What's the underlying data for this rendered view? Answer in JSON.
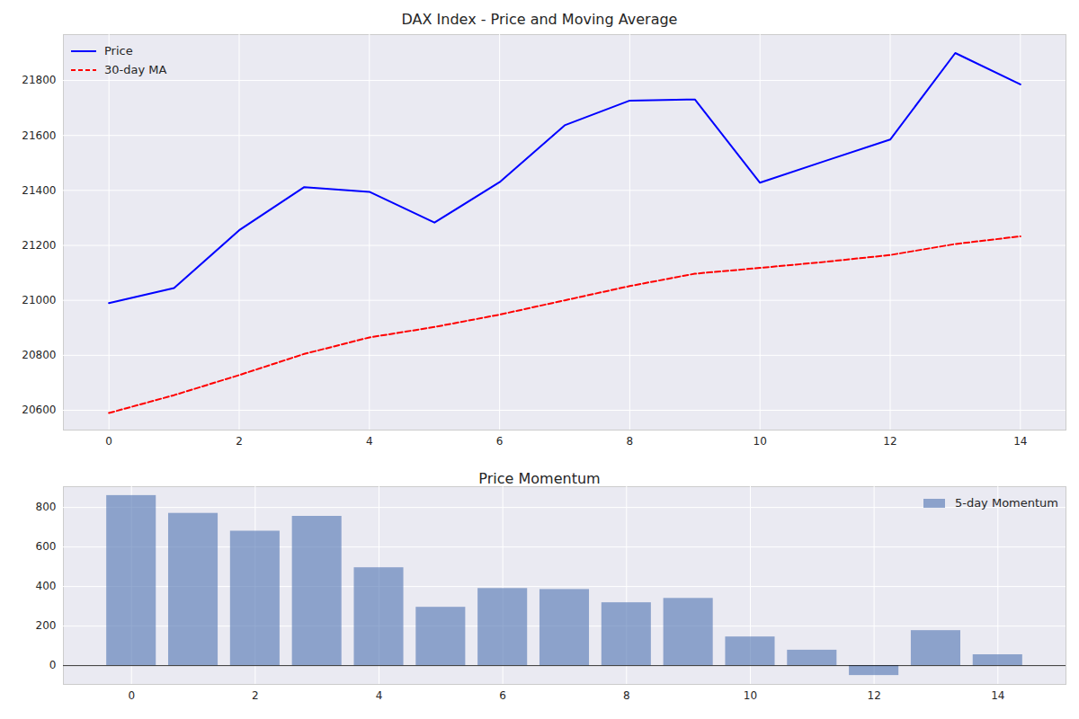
{
  "chart_data": [
    {
      "type": "line",
      "title": "DAX Index - Price and Moving Average",
      "x": [
        0,
        1,
        2,
        3,
        4,
        5,
        6,
        7,
        8,
        9,
        10,
        11,
        12,
        13,
        14
      ],
      "xlim": [
        -0.7,
        14.7
      ],
      "xticks": [
        0,
        2,
        4,
        6,
        8,
        10,
        12,
        14
      ],
      "ylim": [
        20528,
        21967
      ],
      "yticks": [
        20600,
        20800,
        21000,
        21200,
        21400,
        21600,
        21800
      ],
      "grid": true,
      "legend": "upper left",
      "series": [
        {
          "name": "Price",
          "color": "#0000ff",
          "line_style": "solid",
          "values": [
            20990,
            21045,
            21255,
            21412,
            21395,
            21283,
            21430,
            21637,
            21727,
            21731,
            21428,
            21507,
            21585,
            21900,
            21786
          ]
        },
        {
          "name": "30-day MA",
          "color": "#ff0000",
          "line_style": "dashed",
          "values": [
            20590,
            20655,
            20728,
            20805,
            20865,
            20903,
            20948,
            21000,
            21052,
            21097,
            21118,
            21140,
            21165,
            21205,
            21233
          ]
        }
      ]
    },
    {
      "type": "bar",
      "title": "Price Momentum",
      "x": [
        0,
        1,
        2,
        3,
        4,
        5,
        6,
        7,
        8,
        9,
        10,
        11,
        12,
        13,
        14
      ],
      "xlim": [
        -1.1,
        15.1
      ],
      "xticks": [
        0,
        2,
        4,
        6,
        8,
        10,
        12,
        14
      ],
      "ylim": [
        -95,
        905
      ],
      "yticks": [
        0,
        200,
        400,
        600,
        800
      ],
      "grid": true,
      "legend": "upper right",
      "series": [
        {
          "name": "5-day Momentum",
          "color": "#4c72b0",
          "values": [
            860,
            770,
            680,
            755,
            495,
            295,
            390,
            385,
            318,
            340,
            145,
            78,
            -50,
            177,
            55
          ]
        }
      ]
    }
  ]
}
